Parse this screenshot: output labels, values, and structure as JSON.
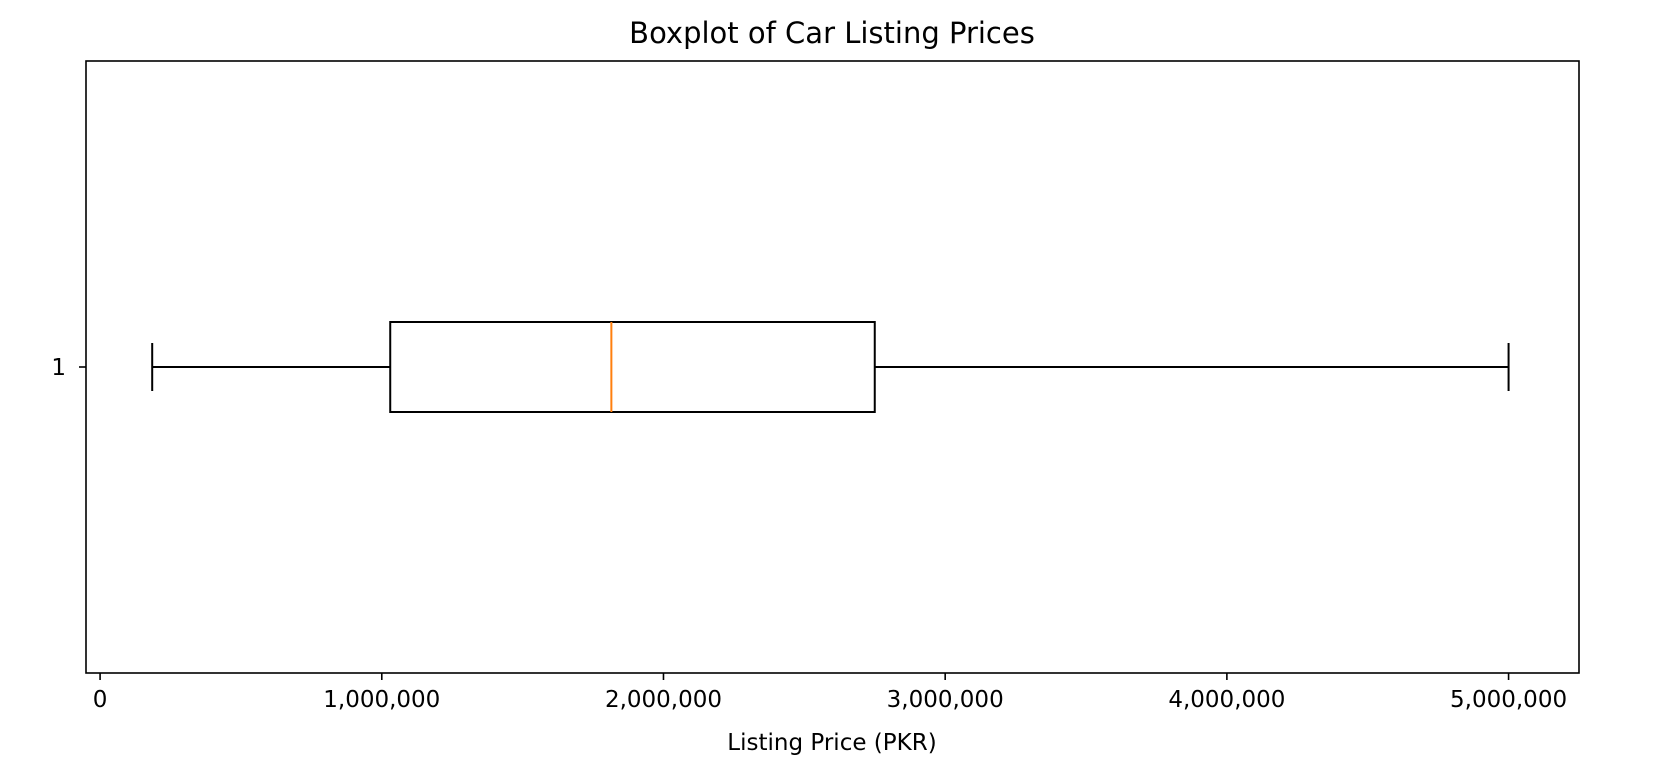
{
  "chart_data": {
    "type": "box",
    "orientation": "horizontal",
    "title": "Boxplot of Car Listing Prices",
    "xlabel": "Listing Price (PKR)",
    "ylabel": "",
    "xlim": [
      -50000,
      5250000
    ],
    "x_ticks": [
      0,
      1000000,
      2000000,
      3000000,
      4000000,
      5000000
    ],
    "x_tick_labels": [
      "0",
      "1,000,000",
      "2,000,000",
      "3,000,000",
      "4,000,000",
      "5,000,000"
    ],
    "y_tick_labels": [
      "1"
    ],
    "grid": false,
    "series": [
      {
        "category": "1",
        "whisker_low": 185000,
        "q1": 1030000,
        "median": 1815000,
        "q3": 2750000,
        "whisker_high": 5000000
      }
    ],
    "colors": {
      "box": "#000000",
      "median": "#ff7f0e",
      "frame": "#000000"
    }
  }
}
